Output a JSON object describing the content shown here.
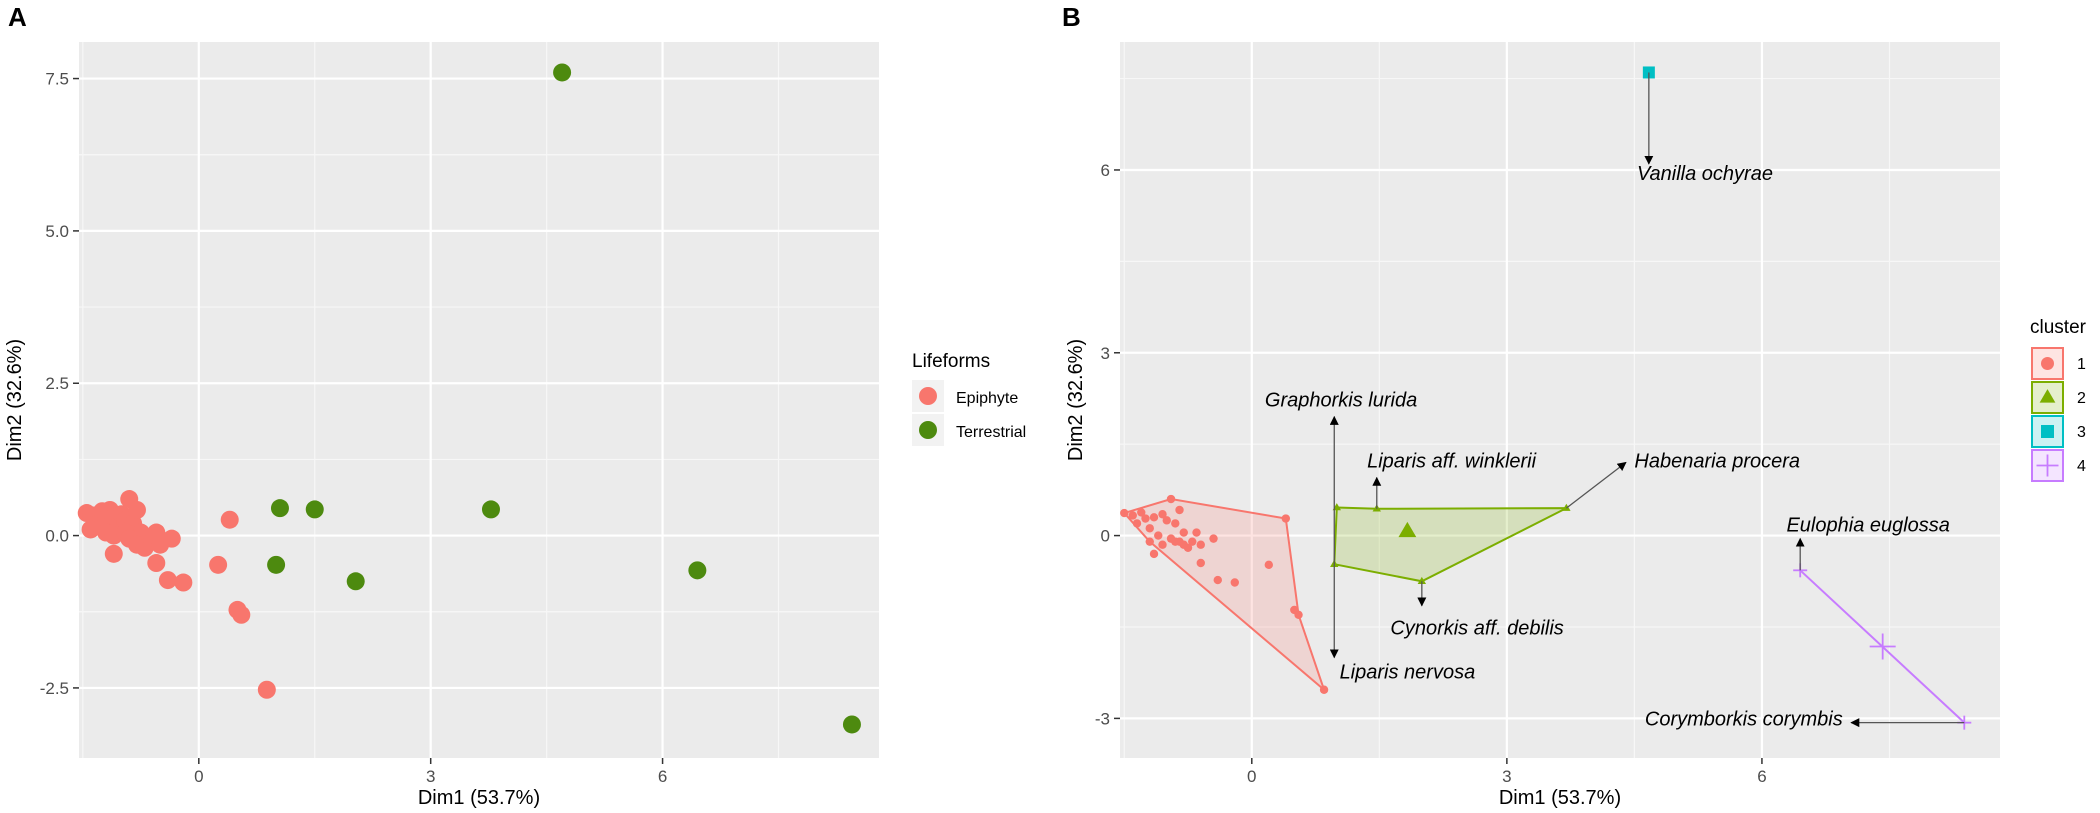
{
  "chart_data": [
    {
      "type": "scatter",
      "panel_label": "A",
      "xlabel": "Dim1 (53.7%)",
      "ylabel": "Dim2 (32.6%)",
      "xlim": [
        -1.55,
        8.8
      ],
      "ylim": [
        -3.65,
        8.1
      ],
      "xticks": [
        0,
        3,
        6
      ],
      "yticks": [
        -2.5,
        0.0,
        2.5,
        5.0,
        7.5
      ],
      "ytick_labels": [
        "-2.5",
        "0.0",
        "2.5",
        "5.0",
        "7.5"
      ],
      "grid": true,
      "legend": {
        "title": "Lifeforms",
        "position": "right"
      },
      "series": [
        {
          "name": "Epiphyte",
          "color": "#F8766D",
          "points": [
            [
              -1.45,
              0.37
            ],
            [
              -1.35,
              0.33
            ],
            [
              -1.3,
              0.2
            ],
            [
              -1.25,
              0.4
            ],
            [
              -1.2,
              0.28
            ],
            [
              -1.15,
              0.42
            ],
            [
              -1.1,
              0.3
            ],
            [
              -1.05,
              0.15
            ],
            [
              -1.0,
              0.35
            ],
            [
              -0.95,
              0.25
            ],
            [
              -0.9,
              0.6
            ],
            [
              -0.85,
              0.2
            ],
            [
              -0.8,
              0.42
            ],
            [
              -0.75,
              0.05
            ],
            [
              -1.4,
              0.1
            ],
            [
              -1.2,
              0.05
            ],
            [
              -1.1,
              0.0
            ],
            [
              -0.95,
              0.05
            ],
            [
              -0.9,
              -0.05
            ],
            [
              -0.8,
              -0.15
            ],
            [
              -0.7,
              -0.2
            ],
            [
              -0.6,
              -0.1
            ],
            [
              -0.55,
              0.05
            ],
            [
              -0.5,
              -0.15
            ],
            [
              -0.35,
              -0.05
            ],
            [
              -1.1,
              -0.3
            ],
            [
              -0.55,
              -0.45
            ],
            [
              -0.4,
              -0.73
            ],
            [
              -0.2,
              -0.77
            ],
            [
              0.25,
              -0.48
            ],
            [
              0.4,
              0.26
            ],
            [
              0.5,
              -1.22
            ],
            [
              0.55,
              -1.3
            ],
            [
              0.88,
              -2.53
            ]
          ]
        },
        {
          "name": "Terrestrial",
          "color": "#4D8A0F",
          "points": [
            [
              1.05,
              0.45
            ],
            [
              1.5,
              0.43
            ],
            [
              1.0,
              -0.48
            ],
            [
              2.03,
              -0.75
            ],
            [
              3.78,
              0.43
            ],
            [
              4.7,
              7.6
            ],
            [
              6.45,
              -0.57
            ],
            [
              8.45,
              -3.1
            ]
          ]
        }
      ]
    },
    {
      "type": "scatter",
      "panel_label": "B",
      "xlabel": "Dim1 (53.7%)",
      "ylabel": "Dim2 (32.6%)",
      "xlim": [
        -1.55,
        8.8
      ],
      "ylim": [
        -3.65,
        8.1
      ],
      "xticks": [
        0,
        3,
        6
      ],
      "yticks": [
        -3,
        0,
        3,
        6
      ],
      "grid": true,
      "legend": {
        "title": "cluster",
        "position": "right"
      },
      "clusters": [
        {
          "name": "1",
          "color": "#F8766D",
          "fill": "#F8766D",
          "shape": "circle",
          "points": [
            [
              -1.5,
              0.37
            ],
            [
              -1.4,
              0.33
            ],
            [
              -1.35,
              0.2
            ],
            [
              -1.3,
              0.38
            ],
            [
              -1.25,
              0.28
            ],
            [
              -1.2,
              0.12
            ],
            [
              -1.15,
              0.3
            ],
            [
              -1.1,
              0.0
            ],
            [
              -1.05,
              0.35
            ],
            [
              -1.0,
              0.25
            ],
            [
              -0.95,
              0.6
            ],
            [
              -0.9,
              0.2
            ],
            [
              -0.85,
              0.42
            ],
            [
              -0.8,
              0.05
            ],
            [
              -1.2,
              -0.1
            ],
            [
              -1.05,
              -0.15
            ],
            [
              -0.95,
              -0.05
            ],
            [
              -0.9,
              -0.1
            ],
            [
              -0.85,
              -0.1
            ],
            [
              -0.8,
              -0.15
            ],
            [
              -0.75,
              -0.2
            ],
            [
              -0.7,
              -0.1
            ],
            [
              -0.65,
              0.05
            ],
            [
              -0.6,
              -0.15
            ],
            [
              -0.45,
              -0.05
            ],
            [
              -1.15,
              -0.3
            ],
            [
              -0.6,
              -0.45
            ],
            [
              -0.4,
              -0.73
            ],
            [
              -0.2,
              -0.77
            ],
            [
              0.2,
              -0.48
            ],
            [
              0.4,
              0.28
            ],
            [
              0.5,
              -1.22
            ],
            [
              0.55,
              -1.3
            ],
            [
              0.85,
              -2.53
            ]
          ],
          "hull": [
            [
              -1.5,
              0.37
            ],
            [
              -0.95,
              0.6
            ],
            [
              0.4,
              0.28
            ],
            [
              0.55,
              -1.3
            ],
            [
              0.85,
              -2.53
            ],
            [
              -1.2,
              -0.1
            ]
          ]
        },
        {
          "name": "2",
          "color": "#7CAE00",
          "fill": "#7CAE00",
          "shape": "triangle",
          "points": [
            [
              1.0,
              0.46
            ],
            [
              1.47,
              0.44
            ],
            [
              0.97,
              -0.47
            ],
            [
              2.0,
              -0.75
            ],
            [
              3.7,
              0.45
            ]
          ],
          "centroid": [
            1.83,
            0.07
          ],
          "hull": [
            [
              1.0,
              0.46
            ],
            [
              1.47,
              0.44
            ],
            [
              3.7,
              0.45
            ],
            [
              2.0,
              -0.75
            ],
            [
              0.97,
              -0.47
            ]
          ]
        },
        {
          "name": "3",
          "color": "#00BFC4",
          "fill": "#00BFC4",
          "shape": "square",
          "points": [
            [
              4.67,
              7.6
            ]
          ],
          "centroid": [
            4.67,
            7.6
          ]
        },
        {
          "name": "4",
          "color": "#C77CFF",
          "fill": "#C77CFF",
          "shape": "plus",
          "points": [
            [
              6.45,
              -0.57
            ],
            [
              8.38,
              -3.07
            ]
          ],
          "centroid": [
            7.42,
            -1.82
          ]
        }
      ],
      "annotations": [
        {
          "label": "Graphorkis lurida",
          "from": [
            0.97,
            -0.47
          ],
          "to": [
            0.97,
            1.95
          ],
          "text_at": [
            1.05,
            2.23
          ],
          "anchor": "middle"
        },
        {
          "label": "Liparis aff. winklerii",
          "from": [
            1.47,
            0.44
          ],
          "to": [
            1.47,
            0.95
          ],
          "text_at": [
            2.35,
            1.23
          ],
          "anchor": "middle"
        },
        {
          "label": "Habenaria procera",
          "from": [
            3.7,
            0.45
          ],
          "to": [
            4.4,
            1.2
          ],
          "text_at": [
            4.5,
            1.23
          ],
          "anchor": "start"
        },
        {
          "label": "Cynorkis aff. debilis",
          "from": [
            2.0,
            -0.75
          ],
          "to": [
            2.0,
            -1.15
          ],
          "text_at": [
            2.65,
            -1.51
          ],
          "anchor": "middle"
        },
        {
          "label": "Liparis nervosa",
          "from": [
            0.97,
            -0.47
          ],
          "to": [
            0.97,
            -2.0
          ],
          "text_at": [
            1.83,
            -2.23
          ],
          "anchor": "middle"
        },
        {
          "label": "Vanilla ochyrae",
          "from": [
            4.67,
            7.6
          ],
          "to": [
            4.67,
            6.1
          ],
          "text_at": [
            5.33,
            5.95
          ],
          "anchor": "middle"
        },
        {
          "label": "Eulophia euglossa",
          "from": [
            6.45,
            -0.57
          ],
          "to": [
            6.45,
            -0.05
          ],
          "text_at": [
            7.25,
            0.18
          ],
          "anchor": "middle"
        },
        {
          "label": "Corymborkis corymbis",
          "from": [
            8.38,
            -3.07
          ],
          "to": [
            7.05,
            -3.07
          ],
          "text_at": [
            6.95,
            -3.0
          ],
          "anchor": "end"
        }
      ]
    }
  ]
}
